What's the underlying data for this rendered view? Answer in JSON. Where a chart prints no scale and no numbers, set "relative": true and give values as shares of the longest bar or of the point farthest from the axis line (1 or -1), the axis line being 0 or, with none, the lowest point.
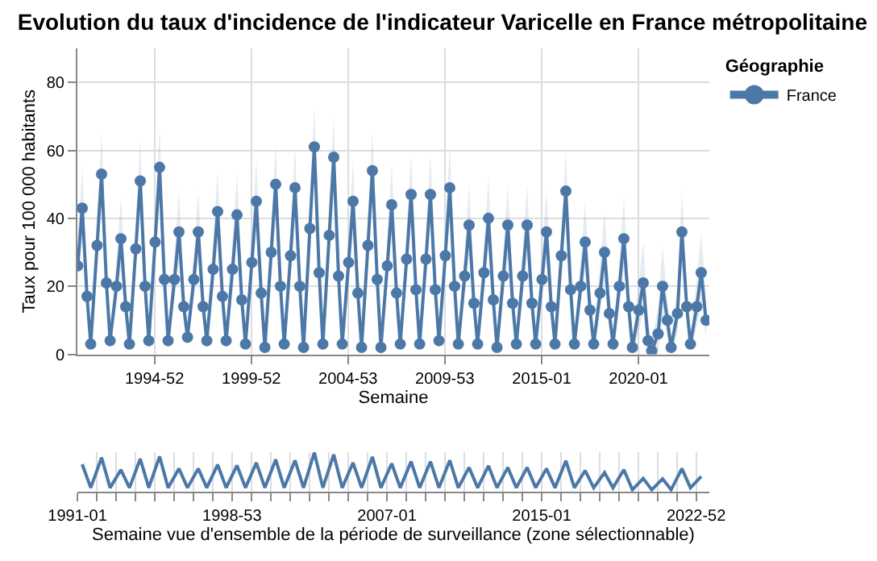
{
  "chart_data": [
    {
      "type": "line",
      "title": "Evolution du taux d'incidence de l'indicateur Varicelle en France métropolitaine",
      "xlabel": "Semaine",
      "ylabel": "Taux pour 100 000 habitants",
      "legend_title": "Géographie",
      "legend": "top right",
      "marker": "circle",
      "grid": true,
      "xlim": [
        "1990-12-31",
        "2023-09-01"
      ],
      "ylim": [
        0,
        90
      ],
      "yticks": [
        0,
        20,
        40,
        60,
        80
      ],
      "xticks": [
        {
          "value": "1994-12-26",
          "label": "1994-52"
        },
        {
          "value": "1999-12-27",
          "label": "1999-52"
        },
        {
          "value": "2004-12-27",
          "label": "2004-53"
        },
        {
          "value": "2009-12-28",
          "label": "2009-53"
        },
        {
          "value": "2015-01-01",
          "label": "2015-01"
        },
        {
          "value": "2020-01-01",
          "label": "2020-01"
        }
      ],
      "x": [
        "1991-01-07",
        "1991-04-01",
        "1991-07-01",
        "1991-09-09",
        "1992-01-07",
        "1992-04-01",
        "1992-07-01",
        "1992-09-09",
        "1993-01-07",
        "1993-04-01",
        "1993-07-01",
        "1993-09-09",
        "1994-01-07",
        "1994-04-01",
        "1994-07-01",
        "1994-09-09",
        "1995-01-07",
        "1995-04-01",
        "1995-07-01",
        "1995-09-09",
        "1996-01-07",
        "1996-04-01",
        "1996-07-01",
        "1996-09-09",
        "1997-01-07",
        "1997-04-01",
        "1997-07-01",
        "1997-09-09",
        "1998-01-07",
        "1998-04-01",
        "1998-07-01",
        "1998-09-09",
        "1999-01-07",
        "1999-04-01",
        "1999-07-01",
        "1999-09-09",
        "2000-01-07",
        "2000-04-01",
        "2000-07-01",
        "2000-09-09",
        "2001-01-07",
        "2001-04-01",
        "2001-07-01",
        "2001-09-09",
        "2002-01-07",
        "2002-04-01",
        "2002-07-01",
        "2002-09-09",
        "2003-01-07",
        "2003-04-01",
        "2003-07-01",
        "2003-09-09",
        "2004-01-07",
        "2004-04-01",
        "2004-07-01",
        "2004-09-09",
        "2005-01-07",
        "2005-04-01",
        "2005-07-01",
        "2005-09-09",
        "2006-01-07",
        "2006-04-01",
        "2006-07-01",
        "2006-09-09",
        "2007-01-07",
        "2007-04-01",
        "2007-07-01",
        "2007-09-09",
        "2008-01-07",
        "2008-04-01",
        "2008-07-01",
        "2008-09-09",
        "2009-01-07",
        "2009-04-01",
        "2009-07-01",
        "2009-09-09",
        "2010-01-07",
        "2010-04-01",
        "2010-07-01",
        "2010-09-09",
        "2011-01-07",
        "2011-04-01",
        "2011-07-01",
        "2011-09-09",
        "2012-01-07",
        "2012-04-01",
        "2012-07-01",
        "2012-09-09",
        "2013-01-07",
        "2013-04-01",
        "2013-07-01",
        "2013-09-09",
        "2014-01-07",
        "2014-04-01",
        "2014-07-01",
        "2014-09-09",
        "2015-01-07",
        "2015-04-01",
        "2015-07-01",
        "2015-09-09",
        "2016-01-07",
        "2016-04-01",
        "2016-07-01",
        "2016-09-09",
        "2017-01-07",
        "2017-04-01",
        "2017-07-01",
        "2017-09-09",
        "2018-01-07",
        "2018-04-01",
        "2018-07-01",
        "2018-09-09",
        "2019-01-07",
        "2019-04-01",
        "2019-07-01",
        "2019-09-09",
        "2020-01-07",
        "2020-04-01",
        "2020-07-01",
        "2020-09-09",
        "2021-01-07",
        "2021-04-01",
        "2021-07-01",
        "2021-09-09",
        "2022-01-07",
        "2022-04-01",
        "2022-07-01",
        "2022-09-09",
        "2023-01-07",
        "2023-04-01",
        "2023-07-01"
      ],
      "series": [
        {
          "name": "France",
          "color": "#4c78a8",
          "values": [
            26,
            43,
            17,
            3,
            32,
            53,
            21,
            4,
            20,
            34,
            14,
            3,
            31,
            51,
            20,
            4,
            33,
            55,
            22,
            4,
            22,
            36,
            14,
            5,
            22,
            36,
            14,
            4,
            25,
            42,
            17,
            4,
            25,
            41,
            16,
            3,
            27,
            45,
            18,
            2,
            30,
            50,
            20,
            3,
            29,
            49,
            20,
            2,
            37,
            61,
            24,
            3,
            35,
            58,
            23,
            3,
            27,
            45,
            18,
            2,
            32,
            54,
            22,
            2,
            26,
            44,
            18,
            3,
            28,
            47,
            19,
            3,
            28,
            47,
            19,
            4,
            29,
            49,
            20,
            3,
            23,
            38,
            15,
            3,
            24,
            40,
            16,
            2,
            23,
            38,
            15,
            3,
            23,
            38,
            15,
            3,
            22,
            36,
            14,
            3,
            29,
            48,
            19,
            3,
            20,
            33,
            13,
            3,
            18,
            30,
            12,
            3,
            20,
            34,
            14,
            2,
            13,
            21,
            4,
            1,
            6,
            20,
            10,
            2,
            12,
            36,
            14,
            3,
            14,
            24,
            10
          ],
          "upper": [
            34,
            55,
            23,
            6,
            40,
            65,
            27,
            7,
            28,
            46,
            20,
            6,
            39,
            63,
            26,
            7,
            41,
            67,
            28,
            7,
            30,
            48,
            20,
            8,
            30,
            48,
            20,
            7,
            33,
            54,
            23,
            7,
            33,
            53,
            22,
            6,
            35,
            57,
            24,
            5,
            38,
            62,
            26,
            6,
            37,
            61,
            26,
            5,
            45,
            73,
            30,
            6,
            43,
            70,
            29,
            6,
            35,
            57,
            24,
            5,
            40,
            66,
            28,
            5,
            34,
            56,
            24,
            6,
            36,
            59,
            25,
            6,
            36,
            59,
            25,
            7,
            37,
            61,
            26,
            6,
            31,
            50,
            21,
            6,
            32,
            52,
            22,
            5,
            31,
            50,
            21,
            6,
            31,
            50,
            21,
            6,
            30,
            48,
            20,
            6,
            37,
            60,
            25,
            6,
            28,
            45,
            19,
            6,
            26,
            42,
            18,
            6,
            28,
            46,
            20,
            5,
            21,
            33,
            10,
            4,
            14,
            32,
            16,
            5,
            20,
            48,
            20,
            6,
            22,
            36,
            16
          ],
          "lower": [
            20,
            34,
            12,
            1,
            26,
            44,
            16,
            2,
            14,
            25,
            9,
            1,
            25,
            42,
            15,
            2,
            27,
            46,
            17,
            2,
            16,
            27,
            9,
            3,
            16,
            27,
            9,
            2,
            19,
            33,
            12,
            2,
            19,
            32,
            11,
            1,
            21,
            36,
            13,
            0,
            24,
            41,
            15,
            1,
            23,
            40,
            15,
            0,
            31,
            52,
            19,
            1,
            29,
            49,
            18,
            1,
            21,
            36,
            13,
            0,
            26,
            45,
            17,
            0,
            20,
            35,
            13,
            1,
            22,
            38,
            14,
            1,
            22,
            38,
            14,
            2,
            23,
            40,
            15,
            1,
            17,
            29,
            10,
            1,
            18,
            31,
            11,
            0,
            17,
            29,
            10,
            1,
            17,
            29,
            10,
            1,
            16,
            27,
            9,
            1,
            23,
            39,
            14,
            1,
            14,
            24,
            8,
            1,
            12,
            21,
            7,
            1,
            14,
            25,
            9,
            0,
            7,
            12,
            0,
            0,
            0,
            11,
            5,
            0,
            6,
            27,
            9,
            1,
            8,
            15,
            5
          ]
        }
      ]
    },
    {
      "type": "line",
      "relative": true,
      "xlabel": "Semaine vue d'ensemble de la période de surveillance (zone sélectionnable)",
      "tick_labels": "x",
      "grid": "x",
      "marker": "none",
      "xlim": [
        "1990-12-31",
        "2023-09-01"
      ],
      "xticks": [
        {
          "value": "1991-01-01",
          "label": "1991-01"
        },
        {
          "value": "1992-01-01",
          "label": null
        },
        {
          "value": "1993-01-01",
          "label": null
        },
        {
          "value": "1994-01-01",
          "label": null
        },
        {
          "value": "1995-01-01",
          "label": null
        },
        {
          "value": "1996-01-01",
          "label": null
        },
        {
          "value": "1997-01-01",
          "label": null
        },
        {
          "value": "1998-01-01",
          "label": null
        },
        {
          "value": "1998-12-28",
          "label": "1998-53"
        },
        {
          "value": "2000-01-01",
          "label": null
        },
        {
          "value": "2001-01-01",
          "label": null
        },
        {
          "value": "2002-01-01",
          "label": null
        },
        {
          "value": "2003-01-01",
          "label": null
        },
        {
          "value": "2004-01-01",
          "label": null
        },
        {
          "value": "2005-01-01",
          "label": null
        },
        {
          "value": "2006-01-01",
          "label": null
        },
        {
          "value": "2007-01-01",
          "label": "2007-01"
        },
        {
          "value": "2008-01-01",
          "label": null
        },
        {
          "value": "2009-01-01",
          "label": null
        },
        {
          "value": "2010-01-01",
          "label": null
        },
        {
          "value": "2011-01-01",
          "label": null
        },
        {
          "value": "2012-01-01",
          "label": null
        },
        {
          "value": "2013-01-01",
          "label": null
        },
        {
          "value": "2014-01-01",
          "label": null
        },
        {
          "value": "2015-01-01",
          "label": "2015-01"
        },
        {
          "value": "2016-01-01",
          "label": null
        },
        {
          "value": "2017-01-01",
          "label": null
        },
        {
          "value": "2018-01-01",
          "label": null
        },
        {
          "value": "2019-01-01",
          "label": null
        },
        {
          "value": "2020-01-01",
          "label": null
        },
        {
          "value": "2021-01-01",
          "label": null
        },
        {
          "value": "2022-01-01",
          "label": null
        },
        {
          "value": "2022-12-26",
          "label": "2022-52"
        }
      ],
      "x": [
        "1991-04-01",
        "1991-09-09",
        "1992-04-01",
        "1992-09-09",
        "1993-04-01",
        "1993-09-09",
        "1994-04-01",
        "1994-09-09",
        "1995-04-01",
        "1995-09-09",
        "1996-04-01",
        "1996-09-09",
        "1997-04-01",
        "1997-09-09",
        "1998-04-01",
        "1998-09-09",
        "1999-04-01",
        "1999-09-09",
        "2000-04-01",
        "2000-09-09",
        "2001-04-01",
        "2001-09-09",
        "2002-04-01",
        "2002-09-09",
        "2003-04-01",
        "2003-09-09",
        "2004-04-01",
        "2004-09-09",
        "2005-04-01",
        "2005-09-09",
        "2006-04-01",
        "2006-09-09",
        "2007-04-01",
        "2007-09-09",
        "2008-04-01",
        "2008-09-09",
        "2009-04-01",
        "2009-09-09",
        "2010-04-01",
        "2010-09-09",
        "2011-04-01",
        "2011-09-09",
        "2012-04-01",
        "2012-09-09",
        "2013-04-01",
        "2013-09-09",
        "2014-04-01",
        "2014-09-09",
        "2015-04-01",
        "2015-09-09",
        "2016-04-01",
        "2016-09-09",
        "2017-04-01",
        "2017-09-09",
        "2018-04-01",
        "2018-09-09",
        "2019-04-01",
        "2019-09-09",
        "2020-04-01",
        "2020-09-09",
        "2021-04-01",
        "2021-09-09",
        "2022-04-01",
        "2022-09-09",
        "2023-04-01"
      ],
      "series": [
        {
          "color": "#4c78a8",
          "values": [
            0.7,
            0.1,
            0.87,
            0.1,
            0.56,
            0.1,
            0.84,
            0.1,
            0.9,
            0.1,
            0.59,
            0.1,
            0.59,
            0.1,
            0.69,
            0.1,
            0.67,
            0.1,
            0.74,
            0.1,
            0.82,
            0.1,
            0.8,
            0.1,
            1,
            0.1,
            0.95,
            0.1,
            0.74,
            0.1,
            0.89,
            0.1,
            0.72,
            0.1,
            0.77,
            0.1,
            0.77,
            0.1,
            0.8,
            0.1,
            0.62,
            0.1,
            0.66,
            0.1,
            0.62,
            0.1,
            0.62,
            0.1,
            0.59,
            0.1,
            0.79,
            0.1,
            0.54,
            0.1,
            0.49,
            0.1,
            0.56,
            0.05,
            0.34,
            0.05,
            0.33,
            0.05,
            0.59,
            0.1,
            0.39
          ]
        }
      ]
    }
  ]
}
